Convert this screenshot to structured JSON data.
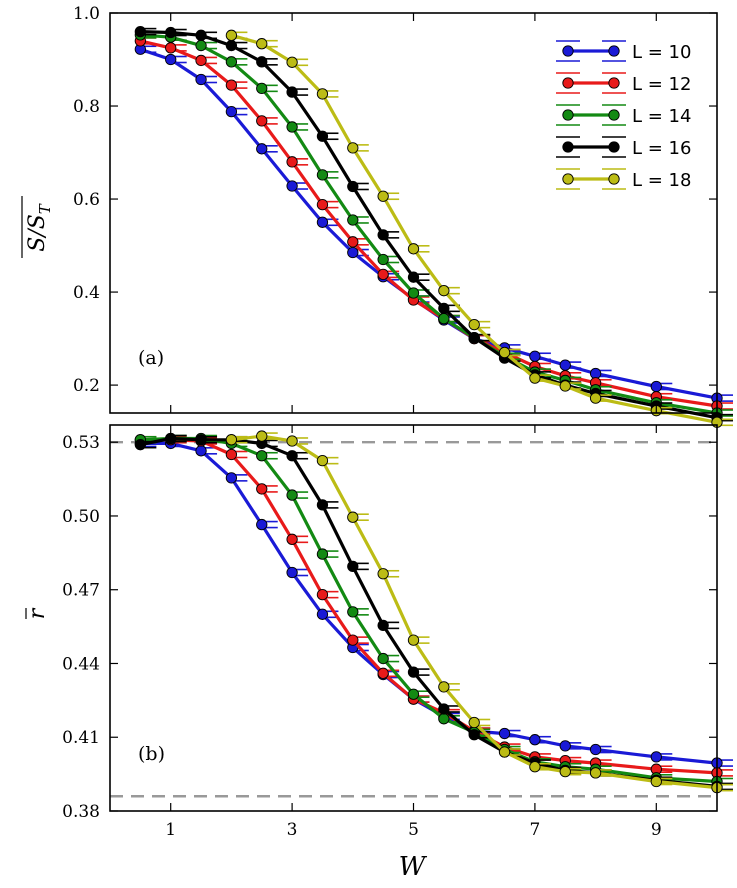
{
  "chart_data": [
    {
      "type": "line",
      "panel_label": "(a)",
      "title": "",
      "xlabel": "",
      "ylabel": "S/S_T (averaged)",
      "ylabel_text": "S/S",
      "ylabel_sub": "T",
      "xlim": [
        0,
        10
      ],
      "ylim": [
        0.14,
        1.0
      ],
      "xticks": [
        1,
        3,
        5,
        7,
        9
      ],
      "xtick_labels": [
        "",
        "",
        "",
        "",
        ""
      ],
      "yticks": [
        0.2,
        0.4,
        0.6,
        0.8,
        1.0
      ],
      "ytick_labels": [
        "0.2",
        "0.4",
        "0.6",
        "0.8",
        "1.0"
      ],
      "legend": "top-right",
      "series": [
        {
          "name": "L = 10",
          "color": "#1a1ad6",
          "x": [
            0.5,
            1,
            1.5,
            2,
            2.5,
            3,
            3.5,
            4,
            4.5,
            5,
            5.5,
            6,
            6.5,
            7,
            7.5,
            8,
            9,
            10
          ],
          "values": [
            0.922,
            0.9,
            0.857,
            0.788,
            0.708,
            0.628,
            0.55,
            0.485,
            0.433,
            0.385,
            0.34,
            0.3,
            0.28,
            0.262,
            0.243,
            0.225,
            0.197,
            0.172
          ]
        },
        {
          "name": "L = 12",
          "color": "#e81a1a",
          "x": [
            0.5,
            1,
            1.5,
            2,
            2.5,
            3,
            3.5,
            4,
            4.5,
            5,
            5.5,
            6,
            6.5,
            7,
            7.5,
            8,
            9,
            10
          ],
          "values": [
            0.94,
            0.925,
            0.898,
            0.845,
            0.768,
            0.68,
            0.588,
            0.508,
            0.438,
            0.383,
            0.343,
            0.3,
            0.27,
            0.24,
            0.22,
            0.205,
            0.175,
            0.155
          ]
        },
        {
          "name": "L = 14",
          "color": "#138a13",
          "x": [
            0.5,
            1,
            1.5,
            2,
            2.5,
            3,
            3.5,
            4,
            4.5,
            5,
            5.5,
            6,
            6.5,
            7,
            7.5,
            8,
            9,
            10
          ],
          "values": [
            0.953,
            0.948,
            0.93,
            0.895,
            0.838,
            0.755,
            0.652,
            0.555,
            0.47,
            0.398,
            0.343,
            0.302,
            0.262,
            0.228,
            0.21,
            0.19,
            0.162,
            0.14
          ]
        },
        {
          "name": "L = 16",
          "color": "#000000",
          "x": [
            0.5,
            1,
            1.5,
            2,
            2.5,
            3,
            3.5,
            4,
            4.5,
            5,
            5.5,
            6,
            6.5,
            7,
            7.5,
            8,
            9,
            10
          ],
          "values": [
            0.96,
            0.958,
            0.952,
            0.93,
            0.895,
            0.83,
            0.735,
            0.627,
            0.523,
            0.432,
            0.365,
            0.302,
            0.258,
            0.222,
            0.2,
            0.182,
            0.155,
            0.13
          ]
        },
        {
          "name": "L = 18",
          "color": "#bcbc15",
          "x": [
            2,
            2.5,
            3,
            3.5,
            4,
            4.5,
            5,
            5.5,
            6,
            6.5,
            7,
            7.5,
            8,
            9,
            10
          ],
          "values": [
            0.952,
            0.934,
            0.894,
            0.826,
            0.71,
            0.606,
            0.493,
            0.403,
            0.33,
            0.27,
            0.215,
            0.198,
            0.172,
            0.145,
            0.12
          ]
        }
      ]
    },
    {
      "type": "line",
      "panel_label": "(b)",
      "title": "",
      "xlabel": "W",
      "ylabel": "r (averaged)",
      "ylabel_text": "r",
      "xlim": [
        0,
        10
      ],
      "ylim": [
        0.38,
        0.537
      ],
      "xticks": [
        1,
        3,
        5,
        7,
        9
      ],
      "xtick_labels": [
        "1",
        "3",
        "5",
        "7",
        "9"
      ],
      "yticks": [
        0.38,
        0.41,
        0.44,
        0.47,
        0.5,
        0.53
      ],
      "ytick_labels": [
        "0.38",
        "0.41",
        "0.44",
        "0.47",
        "0.50",
        "0.53"
      ],
      "reference_lines": [
        0.53,
        0.386
      ],
      "series": [
        {
          "name": "L = 10",
          "color": "#1a1ad6",
          "x": [
            0.5,
            1,
            1.5,
            2,
            2.5,
            3,
            3.5,
            4,
            4.5,
            5,
            5.5,
            6,
            6.5,
            7,
            7.5,
            8,
            9,
            10
          ],
          "values": [
            0.5295,
            0.5295,
            0.5265,
            0.5155,
            0.4965,
            0.477,
            0.46,
            0.4465,
            0.4355,
            0.4255,
            0.4185,
            0.4125,
            0.4115,
            0.409,
            0.4065,
            0.405,
            0.402,
            0.3995
          ]
        },
        {
          "name": "L = 12",
          "color": "#e81a1a",
          "x": [
            0.5,
            1,
            1.5,
            2,
            2.5,
            3,
            3.5,
            4,
            4.5,
            5,
            5.5,
            6,
            6.5,
            7,
            7.5,
            8,
            9,
            10
          ],
          "values": [
            0.531,
            0.531,
            0.5305,
            0.525,
            0.511,
            0.4905,
            0.468,
            0.4495,
            0.436,
            0.4255,
            0.42,
            0.4125,
            0.406,
            0.402,
            0.4005,
            0.3995,
            0.397,
            0.3955
          ]
        },
        {
          "name": "L = 14",
          "color": "#138a13",
          "x": [
            0.5,
            1,
            1.5,
            2,
            2.5,
            3,
            3.5,
            4,
            4.5,
            5,
            5.5,
            6,
            6.5,
            7,
            7.5,
            8,
            9,
            10
          ],
          "values": [
            0.531,
            0.5315,
            0.5315,
            0.5295,
            0.5245,
            0.5085,
            0.4845,
            0.461,
            0.442,
            0.4275,
            0.4175,
            0.412,
            0.405,
            0.4,
            0.398,
            0.397,
            0.3935,
            0.392
          ]
        },
        {
          "name": "L = 16",
          "color": "#000000",
          "x": [
            0.5,
            1,
            1.5,
            2,
            2.5,
            3,
            3.5,
            4,
            4.5,
            5,
            5.5,
            6,
            6.5,
            7,
            7.5,
            8,
            9,
            10
          ],
          "values": [
            0.529,
            0.5315,
            0.531,
            0.531,
            0.5295,
            0.5245,
            0.5045,
            0.4795,
            0.4555,
            0.4365,
            0.4215,
            0.411,
            0.404,
            0.3995,
            0.3965,
            0.3955,
            0.3925,
            0.39
          ]
        },
        {
          "name": "L = 18",
          "color": "#bcbc15",
          "x": [
            2,
            2.5,
            3,
            3.5,
            4,
            4.5,
            5,
            5.5,
            6,
            6.5,
            7,
            7.5,
            8,
            9,
            10
          ],
          "values": [
            0.531,
            0.5325,
            0.5305,
            0.5225,
            0.4995,
            0.4765,
            0.4495,
            0.4305,
            0.416,
            0.404,
            0.398,
            0.396,
            0.3955,
            0.392,
            0.3895
          ]
        }
      ]
    }
  ]
}
